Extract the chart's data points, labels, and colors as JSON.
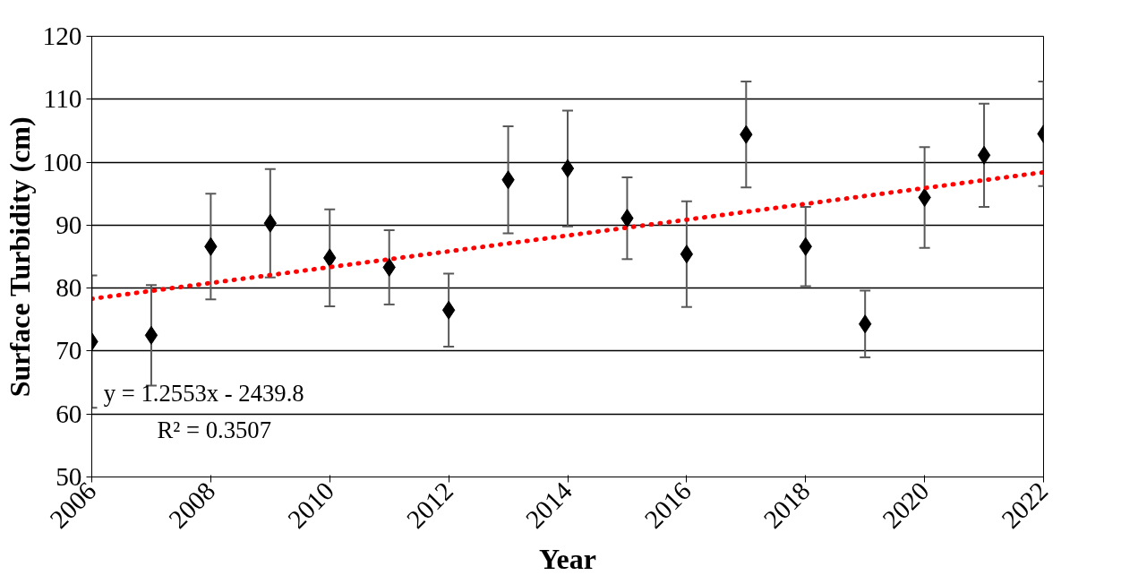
{
  "chart_data": {
    "type": "scatter",
    "xlabel": "Year",
    "ylabel": "Surface Turbidity (cm)",
    "series": [
      {
        "color": "#000000",
        "marker": "diamond",
        "x": [
          2006,
          2007,
          2008,
          2009,
          2010,
          2011,
          2012,
          2013,
          2014,
          2015,
          2016,
          2017,
          2018,
          2019,
          2020,
          2021,
          2022
        ],
        "values": [
          71.5,
          72.5,
          86.6,
          90.3,
          84.8,
          83.3,
          76.5,
          97.2,
          99.0,
          91.1,
          85.4,
          104.4,
          86.6,
          74.3,
          94.4,
          101.1,
          104.5
        ],
        "errors": [
          10.5,
          8,
          8.4,
          8.6,
          7.7,
          5.9,
          5.8,
          8.5,
          9.2,
          6.5,
          8.4,
          8.4,
          6.3,
          5.3,
          8,
          8.2,
          8.3
        ]
      },
      {
        "type": "line",
        "color": "#ff0000",
        "line_style": "dotted",
        "x": [
          2006,
          2022
        ],
        "values": [
          78.3,
          98.4
        ]
      }
    ],
    "annotations": [
      "y = 1.2553x - 2439.8",
      "R² = 0.3507"
    ],
    "xlim": [
      2006,
      2022
    ],
    "xticks": [
      2006,
      2008,
      2010,
      2012,
      2014,
      2016,
      2018,
      2020,
      2022
    ],
    "ylim": [
      50,
      120
    ],
    "yticks": [
      50,
      60,
      70,
      80,
      90,
      100,
      110,
      120
    ],
    "grid": "y"
  }
}
